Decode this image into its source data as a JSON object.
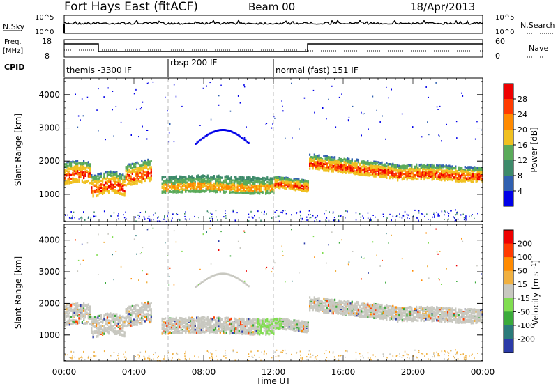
{
  "header": {
    "station": "Fort Hays East (fitACF)",
    "beam": "Beam 00",
    "date": "18/Apr/2013"
  },
  "panels": {
    "nsky_label": "N.Sky",
    "nsearch_label": "N.Search",
    "nsky_ticks": [
      "10^5",
      "10^0"
    ],
    "nsearch_ticks": [
      "10^5",
      "10^0"
    ],
    "freq_label_line1": "Freq.",
    "freq_label_line2": "[MHz]",
    "freq_ticks": [
      "18",
      "8"
    ],
    "nave_label": "Nave",
    "nave_ticks": [
      "60",
      "0"
    ],
    "cpid_label": "CPID",
    "cpid_segments": [
      {
        "label": "themis -3300 IF",
        "start_hr": 0.0
      },
      {
        "label": "rbsp 200 IF",
        "start_hr": 6.0
      },
      {
        "label": "normal (fast) 151 IF",
        "start_hr": 12.0
      }
    ]
  },
  "chart_data": [
    {
      "type": "heatmap",
      "name": "Power",
      "ylabel": "Slant Range [km]",
      "xlabel": "Time UT",
      "ylim": [
        180,
        4500
      ],
      "yticks": [
        1000,
        2000,
        3000,
        4000
      ],
      "colorbar_label": "Power [dB]",
      "colorbar_ticks": [
        4,
        8,
        12,
        16,
        20,
        24,
        28
      ],
      "colorbar_range": [
        0,
        30
      ],
      "colors": [
        "#0000e8",
        "#3060b0",
        "#3d8a6a",
        "#5aaa5a",
        "#f0c020",
        "#ff8a00",
        "#ff3a00",
        "#ee0000"
      ]
    },
    {
      "type": "heatmap",
      "name": "Velocity",
      "ylabel": "Slant Range [km]",
      "xlabel": "Time UT",
      "ylim": [
        180,
        4500
      ],
      "yticks": [
        1000,
        2000,
        3000,
        4000
      ],
      "colorbar_label": "Velocity [m s^-1]",
      "colorbar_ticks": [
        200,
        100,
        50,
        15,
        -15,
        -50,
        -100,
        -200
      ],
      "colors": [
        "#2a3aa8",
        "#2a7a7a",
        "#3aaa3a",
        "#80dd50",
        "#c8c8c0",
        "#f0b040",
        "#ff8a00",
        "#ff3a00",
        "#ee0000"
      ]
    }
  ],
  "time_axis": {
    "label": "Time UT",
    "ticks": [
      "00:00",
      "04:00",
      "08:00",
      "12:00",
      "16:00",
      "20:00",
      "00:00"
    ],
    "range_hr": [
      0,
      24
    ]
  }
}
